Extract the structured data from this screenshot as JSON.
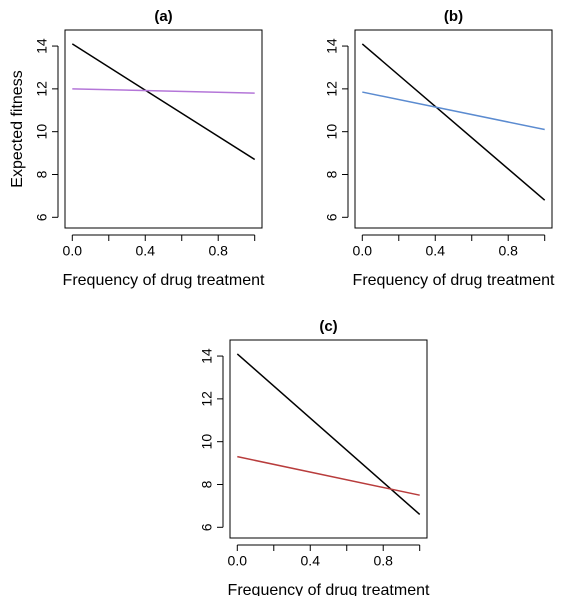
{
  "chart_data": [
    {
      "type": "line",
      "title": "(a)",
      "xlabel": "Frequency of drug treatment",
      "ylabel": "Expected fitness",
      "x": [
        0,
        1
      ],
      "series": [
        {
          "color": "#000000",
          "values": [
            14.1,
            8.7
          ]
        },
        {
          "color": "#b476d8",
          "values": [
            12.0,
            11.8
          ]
        }
      ],
      "xlim": [
        -0.04,
        1.04
      ],
      "ylim": [
        5.5,
        14.75
      ],
      "xticks": [
        {
          "value": 0,
          "label": "0.0"
        },
        {
          "value": 0.2,
          "label": null
        },
        {
          "value": 0.4,
          "label": "0.4"
        },
        {
          "value": 0.6,
          "label": null
        },
        {
          "value": 0.8,
          "label": "0.8"
        },
        {
          "value": 1.0,
          "label": null
        }
      ],
      "yticks": [
        6,
        8,
        10,
        12,
        14
      ]
    },
    {
      "type": "line",
      "title": "(b)",
      "xlabel": "Frequency of drug treatment",
      "x": [
        0,
        1
      ],
      "series": [
        {
          "color": "#000000",
          "values": [
            14.1,
            6.8
          ]
        },
        {
          "color": "#5b8bd0",
          "values": [
            11.85,
            10.1
          ]
        }
      ],
      "xlim": [
        -0.04,
        1.04
      ],
      "ylim": [
        5.5,
        14.75
      ],
      "xticks": [
        {
          "value": 0,
          "label": "0.0"
        },
        {
          "value": 0.2,
          "label": null
        },
        {
          "value": 0.4,
          "label": "0.4"
        },
        {
          "value": 0.6,
          "label": null
        },
        {
          "value": 0.8,
          "label": "0.8"
        },
        {
          "value": 1.0,
          "label": null
        }
      ],
      "yticks": [
        6,
        8,
        10,
        12,
        14
      ]
    },
    {
      "type": "line",
      "title": "(c)",
      "xlabel": "Frequency of drug treatment",
      "x": [
        0,
        1
      ],
      "series": [
        {
          "color": "#000000",
          "values": [
            14.1,
            6.6
          ]
        },
        {
          "color": "#b83c3c",
          "values": [
            9.3,
            7.5
          ]
        }
      ],
      "xlim": [
        -0.04,
        1.04
      ],
      "ylim": [
        5.5,
        14.75
      ],
      "xticks": [
        {
          "value": 0,
          "label": "0.0"
        },
        {
          "value": 0.2,
          "label": null
        },
        {
          "value": 0.4,
          "label": "0.4"
        },
        {
          "value": 0.6,
          "label": null
        },
        {
          "value": 0.8,
          "label": "0.8"
        },
        {
          "value": 1.0,
          "label": null
        }
      ],
      "yticks": [
        6,
        8,
        10,
        12,
        14
      ]
    }
  ]
}
